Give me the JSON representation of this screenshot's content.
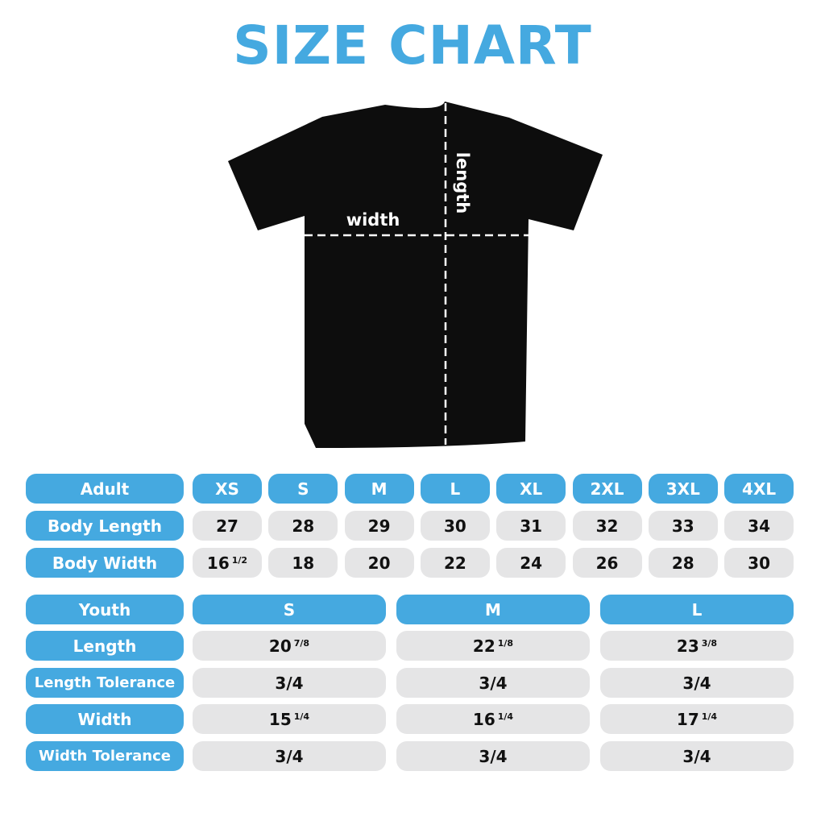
{
  "title": "SIZE CHART",
  "diagram": {
    "width_label": "width",
    "length_label": "length"
  },
  "colors": {
    "accent": "#45a9e0",
    "cell": "#e5e5e6",
    "shirt": "#0d0d0d"
  },
  "adult": {
    "header": "Adult",
    "sizes": [
      "XS",
      "S",
      "M",
      "L",
      "XL",
      "2XL",
      "3XL",
      "4XL"
    ],
    "rows": [
      {
        "label": "Body Length",
        "values": [
          {
            "whole": "27"
          },
          {
            "whole": "28"
          },
          {
            "whole": "29"
          },
          {
            "whole": "30"
          },
          {
            "whole": "31"
          },
          {
            "whole": "32"
          },
          {
            "whole": "33"
          },
          {
            "whole": "34"
          }
        ]
      },
      {
        "label": "Body Width",
        "values": [
          {
            "whole": "16",
            "frac": "1/2"
          },
          {
            "whole": "18"
          },
          {
            "whole": "20"
          },
          {
            "whole": "22"
          },
          {
            "whole": "24"
          },
          {
            "whole": "26"
          },
          {
            "whole": "28"
          },
          {
            "whole": "30"
          }
        ]
      }
    ]
  },
  "youth": {
    "header": "Youth",
    "sizes": [
      "S",
      "M",
      "L"
    ],
    "rows": [
      {
        "label": "Length",
        "values": [
          {
            "whole": "20",
            "frac": "7/8"
          },
          {
            "whole": "22",
            "frac": "1/8"
          },
          {
            "whole": "23",
            "frac": "3/8"
          }
        ]
      },
      {
        "label": "Length Tolerance",
        "values": [
          {
            "whole": "3/4"
          },
          {
            "whole": "3/4"
          },
          {
            "whole": "3/4"
          }
        ]
      },
      {
        "label": "Width",
        "values": [
          {
            "whole": "15",
            "frac": "1/4"
          },
          {
            "whole": "16",
            "frac": "1/4"
          },
          {
            "whole": "17",
            "frac": "1/4"
          }
        ]
      },
      {
        "label": "Width Tolerance",
        "values": [
          {
            "whole": "3/4"
          },
          {
            "whole": "3/4"
          },
          {
            "whole": "3/4"
          }
        ]
      }
    ]
  }
}
